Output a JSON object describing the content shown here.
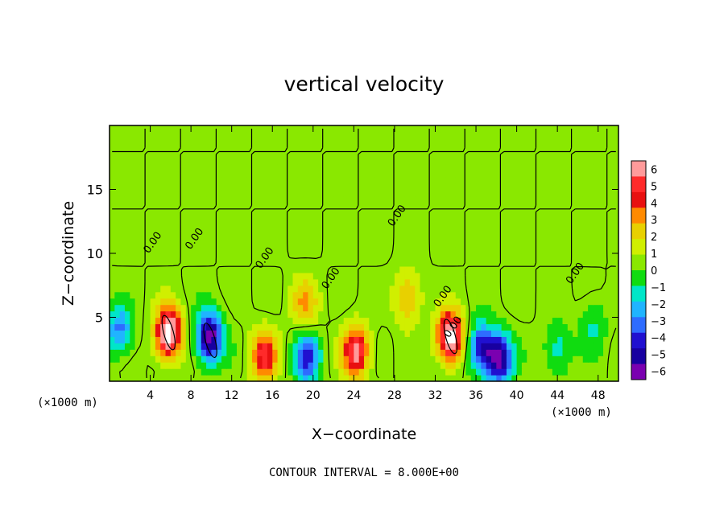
{
  "chart_data": {
    "type": "heatmap",
    "title": "vertical velocity",
    "xlabel": "X−coordinate",
    "ylabel": "Z−coordinate",
    "x_unit_label": "(×1000 m)",
    "y_unit_label": "(×1000 m)",
    "xlim": [
      0,
      50
    ],
    "ylim": [
      0,
      20
    ],
    "x_ticks": [
      "4",
      "8",
      "12",
      "16",
      "20",
      "24",
      "28",
      "32",
      "36",
      "40",
      "44",
      "48"
    ],
    "y_ticks": [
      "5",
      "10",
      "15"
    ],
    "colorbar": {
      "min": -6,
      "max": 6,
      "labels": [
        "6",
        "5",
        "4",
        "3",
        "2",
        "1",
        "0",
        "−1",
        "−2",
        "−3",
        "−4",
        "−5",
        "−6"
      ],
      "colors": [
        "#ff9a9a",
        "#ff2a2a",
        "#e81010",
        "#ff8a00",
        "#e8d000",
        "#d0ef00",
        "#8ae800",
        "#10dc10",
        "#00e6c8",
        "#20b4ff",
        "#2e6cff",
        "#2010d0",
        "#1800a0",
        "#7a00b0"
      ]
    },
    "contour_labels": [
      "0.00",
      "0.00",
      "0.00",
      "0.00",
      "0.00",
      "0.00",
      "0.00",
      "0.00"
    ],
    "contour_interval": "CONTOUR INTERVAL = 8.000E+00",
    "features": [
      {
        "x": 1.0,
        "z": 4.0,
        "w": -3.5
      },
      {
        "x": 5.8,
        "z": 3.8,
        "w": 7.5
      },
      {
        "x": 9.8,
        "z": 3.5,
        "w": -7.0
      },
      {
        "x": 15.2,
        "z": 2.0,
        "w": 4.5
      },
      {
        "x": 19.4,
        "z": 1.8,
        "w": -4.5
      },
      {
        "x": 19.2,
        "z": 6.2,
        "w": 2.5
      },
      {
        "x": 24.2,
        "z": 2.3,
        "w": 5.5
      },
      {
        "x": 29.3,
        "z": 6.5,
        "w": 2.5
      },
      {
        "x": 33.5,
        "z": 3.5,
        "w": 7.5
      },
      {
        "x": 36.5,
        "z": 2.6,
        "w": -5.0
      },
      {
        "x": 38.3,
        "z": 1.8,
        "w": -6.5
      },
      {
        "x": 44.0,
        "z": 2.5,
        "w": -2.0
      },
      {
        "x": 47.5,
        "z": 4.5,
        "w": -1.5
      }
    ]
  }
}
